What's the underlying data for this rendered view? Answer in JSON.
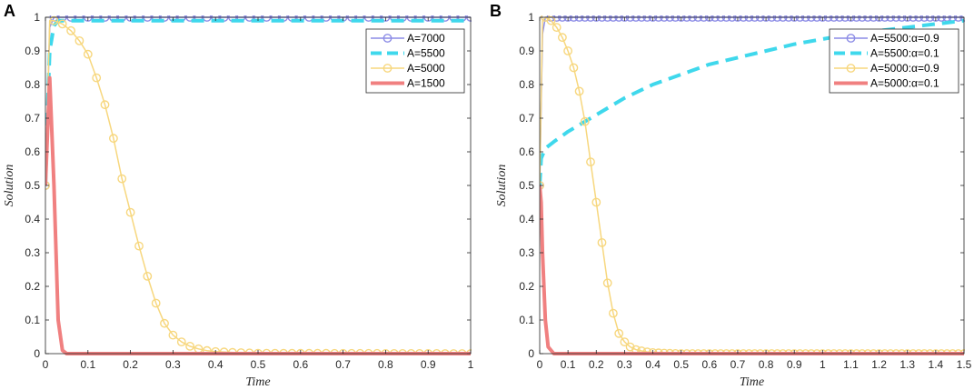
{
  "chart_data": [
    {
      "panel": "A",
      "type": "line",
      "title": "",
      "xlabel": "Time",
      "ylabel": "Solution",
      "xlim": [
        0,
        1
      ],
      "ylim": [
        0,
        1
      ],
      "xticks": [
        0,
        0.1,
        0.2,
        0.3,
        0.4,
        0.5,
        0.6,
        0.7,
        0.8,
        0.9,
        1
      ],
      "yticks": [
        0,
        0.1,
        0.2,
        0.3,
        0.4,
        0.5,
        0.6,
        0.7,
        0.8,
        0.9,
        1
      ],
      "legend_position": "top-right",
      "series": [
        {
          "name": "A=7000",
          "color": "#8c8ce6",
          "style": "solid-circle",
          "x": [
            0,
            0.01,
            0.02,
            0.03,
            1
          ],
          "y": [
            0.5,
            0.97,
            1,
            1,
            1
          ]
        },
        {
          "name": "A=5500",
          "color": "#3fd8ec",
          "style": "dashed",
          "x": [
            0,
            0.005,
            0.01,
            0.02,
            0.03,
            1
          ],
          "y": [
            0.5,
            0.72,
            0.9,
            0.975,
            0.99,
            0.99
          ]
        },
        {
          "name": "A=5000",
          "color": "#f7d77e",
          "style": "solid-circle",
          "x": [
            0,
            0.01,
            0.02,
            0.04,
            0.06,
            0.08,
            0.1,
            0.12,
            0.14,
            0.16,
            0.18,
            0.2,
            0.22,
            0.24,
            0.26,
            0.28,
            0.3,
            0.32,
            0.34,
            0.36,
            0.38,
            0.4,
            0.45,
            0.5,
            1
          ],
          "y": [
            0.5,
            0.99,
            0.99,
            0.98,
            0.96,
            0.93,
            0.89,
            0.82,
            0.74,
            0.64,
            0.52,
            0.42,
            0.32,
            0.23,
            0.15,
            0.09,
            0.055,
            0.035,
            0.022,
            0.014,
            0.009,
            0.006,
            0.003,
            0.001,
            0
          ]
        },
        {
          "name": "A=1500",
          "color": "#f08080",
          "style": "solid-thick",
          "x": [
            0,
            0.01,
            0.02,
            0.03,
            0.04,
            0.05,
            1
          ],
          "y": [
            0.5,
            0.82,
            0.5,
            0.1,
            0.01,
            0,
            0
          ]
        }
      ]
    },
    {
      "panel": "B",
      "type": "line",
      "title": "",
      "xlabel": "Time",
      "ylabel": "Solution",
      "xlim": [
        0,
        1.5
      ],
      "ylim": [
        0,
        1
      ],
      "xticks": [
        0,
        0.1,
        0.2,
        0.3,
        0.4,
        0.5,
        0.6,
        0.7,
        0.8,
        0.9,
        1,
        1.1,
        1.2,
        1.3,
        1.4,
        1.5
      ],
      "yticks": [
        0,
        0.1,
        0.2,
        0.3,
        0.4,
        0.5,
        0.6,
        0.7,
        0.8,
        0.9,
        1
      ],
      "legend_position": "top-right",
      "series": [
        {
          "name": "A=5500:α=0.9",
          "color": "#8c8ce6",
          "style": "solid-circle",
          "x": [
            0,
            0.01,
            0.02,
            0.04,
            1.5
          ],
          "y": [
            0.5,
            0.95,
            1,
            1,
            1
          ]
        },
        {
          "name": "A=5500:α=0.1",
          "color": "#3fd8ec",
          "style": "dashed",
          "x": [
            0,
            0.005,
            0.02,
            0.05,
            0.1,
            0.2,
            0.3,
            0.4,
            0.5,
            0.6,
            0.7,
            0.8,
            0.9,
            1.0,
            1.1,
            1.2,
            1.3,
            1.4,
            1.5
          ],
          "y": [
            0.5,
            0.58,
            0.61,
            0.63,
            0.66,
            0.71,
            0.76,
            0.8,
            0.83,
            0.86,
            0.88,
            0.9,
            0.92,
            0.935,
            0.95,
            0.96,
            0.97,
            0.98,
            0.99
          ]
        },
        {
          "name": "A=5000:α=0.9",
          "color": "#f7d77e",
          "style": "solid-circle",
          "x": [
            0,
            0.01,
            0.02,
            0.04,
            0.06,
            0.08,
            0.1,
            0.12,
            0.14,
            0.16,
            0.18,
            0.2,
            0.22,
            0.24,
            0.26,
            0.28,
            0.3,
            0.32,
            0.34,
            0.36,
            0.38,
            0.4,
            0.45,
            0.5,
            1.5
          ],
          "y": [
            0.5,
            0.99,
            1,
            0.99,
            0.97,
            0.94,
            0.9,
            0.85,
            0.78,
            0.69,
            0.57,
            0.45,
            0.33,
            0.21,
            0.12,
            0.06,
            0.035,
            0.02,
            0.012,
            0.008,
            0.005,
            0.003,
            0.001,
            0,
            0
          ]
        },
        {
          "name": "A=5000:α=0.1",
          "color": "#f08080",
          "style": "solid-thick",
          "x": [
            0,
            0.005,
            0.01,
            0.02,
            0.03,
            0.05,
            1.5
          ],
          "y": [
            0.5,
            0.45,
            0.3,
            0.1,
            0.02,
            0,
            0
          ]
        }
      ]
    }
  ]
}
